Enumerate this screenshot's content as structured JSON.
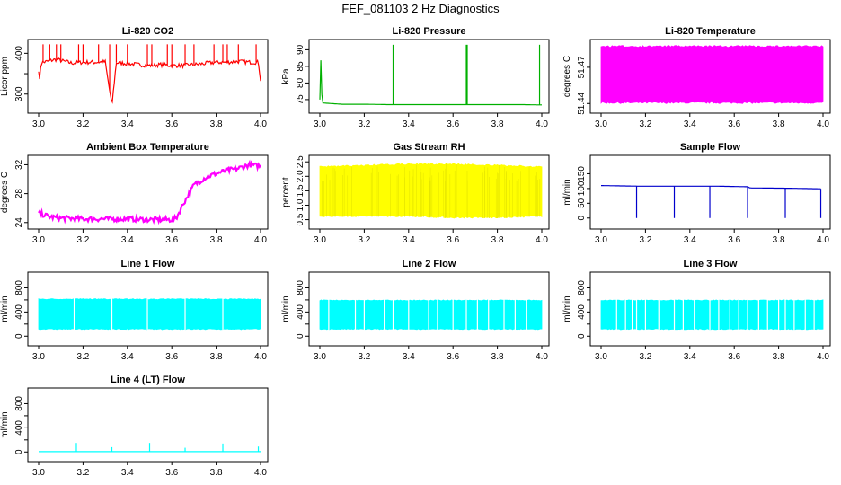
{
  "page_title": "FEF_081103  2 Hz Diagnostics",
  "chart_data": [
    {
      "type": "line",
      "title": "Li-820 CO2",
      "ylabel": "Licor ppm",
      "color": "#ff0000",
      "xlim": [
        3.0,
        4.0
      ],
      "ylim": [
        262,
        425
      ],
      "xticks": [
        "3.0",
        "3.2",
        "3.4",
        "3.6",
        "3.8",
        "4.0"
      ],
      "yticks": [
        300,
        350,
        400
      ],
      "yticklabels": [
        "300",
        "",
        "400"
      ],
      "series": [
        {
          "x": [
            3.0,
            3.005,
            3.01,
            3.02,
            3.04,
            3.06,
            3.08,
            3.1,
            3.15,
            3.2,
            3.25,
            3.3,
            3.33,
            3.35,
            3.4,
            3.45,
            3.5,
            3.55,
            3.6,
            3.65,
            3.7,
            3.75,
            3.8,
            3.85,
            3.9,
            3.95,
            3.99,
            4.0
          ],
          "y": [
            360,
            330,
            375,
            378,
            380,
            383,
            385,
            382,
            376,
            378,
            378,
            379,
            272,
            377,
            375,
            372,
            370,
            372,
            370,
            370,
            372,
            375,
            378,
            378,
            380,
            378,
            378,
            335
          ]
        }
      ],
      "spikes": [
        3.02,
        3.05,
        3.08,
        3.1,
        3.18,
        3.2,
        3.27,
        3.32,
        3.35,
        3.4,
        3.49,
        3.51,
        3.58,
        3.6,
        3.66,
        3.7,
        3.79,
        3.83,
        3.85,
        3.9,
        3.98
      ],
      "spike_top": 422
    },
    {
      "type": "line",
      "title": "Li-820 Pressure",
      "ylabel": "kPa",
      "color": "#00b000",
      "xlim": [
        3.0,
        4.0
      ],
      "ylim": [
        72,
        92
      ],
      "xticks": [
        "3.0",
        "3.2",
        "3.4",
        "3.6",
        "3.8",
        "4.0"
      ],
      "yticks": [
        75,
        80,
        85,
        90
      ],
      "yticklabels": [
        "75",
        "80",
        "85",
        "90"
      ],
      "series": [
        {
          "x": [
            3.0,
            3.005,
            3.01,
            3.1,
            3.2,
            3.3,
            3.33,
            3.4,
            3.5,
            3.6,
            3.66,
            3.7,
            3.8,
            3.9,
            3.99,
            4.0
          ],
          "y": [
            75,
            88,
            74,
            73.6,
            73.6,
            73.5,
            73.5,
            73.5,
            73.5,
            73.5,
            73.5,
            73.5,
            73.5,
            73.5,
            73.4,
            73.4
          ]
        }
      ],
      "spikes": [
        3.33,
        3.66,
        3.664,
        3.99
      ],
      "spike_top": 91.5
    },
    {
      "type": "area",
      "title": "Li-820 Temperature",
      "ylabel": "degrees C",
      "color": "#ff00ff",
      "xlim": [
        3.0,
        4.0
      ],
      "ylim": [
        51.435,
        51.49
      ],
      "xticks": [
        "3.0",
        "3.2",
        "3.4",
        "3.6",
        "3.8",
        "4.0"
      ],
      "yticks": [
        51.44,
        51.47
      ],
      "yticklabels": [
        "51.44",
        "51.47"
      ],
      "series": [
        {
          "x": [
            3.0,
            4.0
          ],
          "ymin": [
            51.44,
            51.44
          ],
          "ymax": [
            51.488,
            51.488
          ]
        }
      ]
    },
    {
      "type": "line",
      "title": "Ambient Box Temperature",
      "ylabel": "degrees C",
      "color": "#ff00ff",
      "xlim": [
        3.0,
        4.0
      ],
      "ylim": [
        23.6,
        32.8
      ],
      "xticks": [
        "3.0",
        "3.2",
        "3.4",
        "3.6",
        "3.8",
        "4.0"
      ],
      "yticks": [
        24,
        28,
        32
      ],
      "yticklabels": [
        "24",
        "28",
        "32"
      ],
      "series": [
        {
          "x": [
            3.0,
            3.05,
            3.1,
            3.2,
            3.3,
            3.4,
            3.5,
            3.6,
            3.62,
            3.65,
            3.7,
            3.75,
            3.8,
            3.85,
            3.9,
            3.95,
            4.0
          ],
          "y": [
            25.3,
            24.8,
            24.6,
            24.5,
            24.5,
            24.5,
            24.4,
            24.4,
            24.6,
            26.5,
            29.2,
            30.2,
            30.8,
            31.2,
            31.5,
            32.0,
            31.8
          ]
        }
      ],
      "noise": 0.35
    },
    {
      "type": "area",
      "title": "Gas Stream RH",
      "ylabel": "percent",
      "color": "#ffff00",
      "xlim": [
        3.0,
        4.0
      ],
      "ylim": [
        0.3,
        2.6
      ],
      "xticks": [
        "3.0",
        "3.2",
        "3.4",
        "3.6",
        "3.8",
        "4.0"
      ],
      "yticks": [
        0.5,
        1.0,
        1.5,
        2.0,
        2.5
      ],
      "yticklabels": [
        "0.5",
        "1.0",
        "1.5",
        "2.0",
        "2.5"
      ],
      "series": [
        {
          "x": [
            3.0,
            3.2,
            3.4,
            3.6,
            3.8,
            4.0
          ],
          "ymin": [
            0.6,
            0.6,
            0.6,
            0.55,
            0.55,
            0.6
          ],
          "ymax": [
            2.35,
            2.4,
            2.45,
            2.45,
            2.4,
            2.35
          ]
        }
      ]
    },
    {
      "type": "line",
      "title": "Sample Flow",
      "ylabel": "ml/min",
      "color": "#0000cc",
      "xlim": [
        3.0,
        4.0
      ],
      "ylim": [
        -25,
        200
      ],
      "xticks": [
        "3.0",
        "3.2",
        "3.4",
        "3.6",
        "3.8",
        "4.0"
      ],
      "yticks": [
        0,
        50,
        100,
        150
      ],
      "yticklabels": [
        "0",
        "50",
        "100",
        "150"
      ],
      "series": [
        {
          "x": [
            3.0,
            3.16,
            3.17,
            3.33,
            3.34,
            3.5,
            3.51,
            3.66,
            3.67,
            3.83,
            3.84,
            3.99
          ],
          "y": [
            110,
            108,
            108,
            108,
            108,
            108,
            108,
            106,
            102,
            101,
            101,
            99
          ]
        }
      ],
      "spikes_down": [
        3.16,
        3.33,
        3.49,
        3.66,
        3.83,
        3.99
      ],
      "spike_bottom": 0
    },
    {
      "type": "area",
      "title": "Line 1 Flow",
      "ylabel": "ml/min",
      "color": "#00ffff",
      "xlim": [
        3.0,
        4.0
      ],
      "ylim": [
        -100,
        1000
      ],
      "xticks": [
        "3.0",
        "3.2",
        "3.4",
        "3.6",
        "3.8",
        "4.0"
      ],
      "yticks": [
        0,
        200,
        400,
        600,
        800
      ],
      "yticklabels": [
        "0",
        "",
        "400",
        "",
        "800"
      ],
      "series": [
        {
          "x": [
            3.0,
            4.0
          ],
          "ymin": [
            110,
            110
          ],
          "ymax": [
            620,
            620
          ]
        }
      ],
      "gaps": [
        3.16,
        3.33,
        3.49,
        3.66,
        3.83
      ]
    },
    {
      "type": "area",
      "title": "Line 2 Flow",
      "ylabel": "ml/min",
      "color": "#00ffff",
      "xlim": [
        3.0,
        4.0
      ],
      "ylim": [
        -100,
        1000
      ],
      "xticks": [
        "3.0",
        "3.2",
        "3.4",
        "3.6",
        "3.8",
        "4.0"
      ],
      "yticks": [
        0,
        200,
        400,
        600,
        800
      ],
      "yticklabels": [
        "0",
        "",
        "400",
        "",
        "800"
      ],
      "series": [
        {
          "x": [
            3.0,
            4.0
          ],
          "ymin": [
            110,
            110
          ],
          "ymax": [
            600,
            600
          ]
        }
      ],
      "gaps": [
        3.04,
        3.16,
        3.2,
        3.29,
        3.33,
        3.4,
        3.49,
        3.53,
        3.6,
        3.66,
        3.71,
        3.76,
        3.83,
        3.88,
        3.93
      ]
    },
    {
      "type": "area",
      "title": "Line 3 Flow",
      "ylabel": "ml/min",
      "color": "#00ffff",
      "xlim": [
        3.0,
        4.0
      ],
      "ylim": [
        -100,
        1000
      ],
      "xticks": [
        "3.0",
        "3.2",
        "3.4",
        "3.6",
        "3.8",
        "4.0"
      ],
      "yticks": [
        0,
        200,
        400,
        600,
        800
      ],
      "yticklabels": [
        "0",
        "",
        "400",
        "",
        "800"
      ],
      "series": [
        {
          "x": [
            3.0,
            4.0
          ],
          "ymin": [
            110,
            110
          ],
          "ymax": [
            600,
            600
          ]
        }
      ],
      "gaps": [
        3.07,
        3.11,
        3.14,
        3.16,
        3.2,
        3.26,
        3.33,
        3.37,
        3.42,
        3.49,
        3.53,
        3.58,
        3.62,
        3.66,
        3.71,
        3.75,
        3.8,
        3.83,
        3.87,
        3.92,
        3.96
      ]
    },
    {
      "type": "line",
      "title": "Line 4 (LT) Flow",
      "ylabel": "ml/min",
      "color": "#00ffff",
      "xlim": [
        3.0,
        4.0
      ],
      "ylim": [
        -100,
        1000
      ],
      "xticks": [
        "3.0",
        "3.2",
        "3.4",
        "3.6",
        "3.8",
        "4.0"
      ],
      "yticks": [
        0,
        200,
        400,
        600,
        800
      ],
      "yticklabels": [
        "0",
        "",
        "400",
        "",
        "800"
      ],
      "series": [
        {
          "x": [
            3.0,
            4.0
          ],
          "y": [
            5,
            5
          ]
        }
      ],
      "spikes": [
        3.17,
        3.33,
        3.5,
        3.66,
        3.83,
        3.99
      ],
      "spike_heights": [
        150,
        80,
        150,
        70,
        140,
        90
      ]
    }
  ]
}
